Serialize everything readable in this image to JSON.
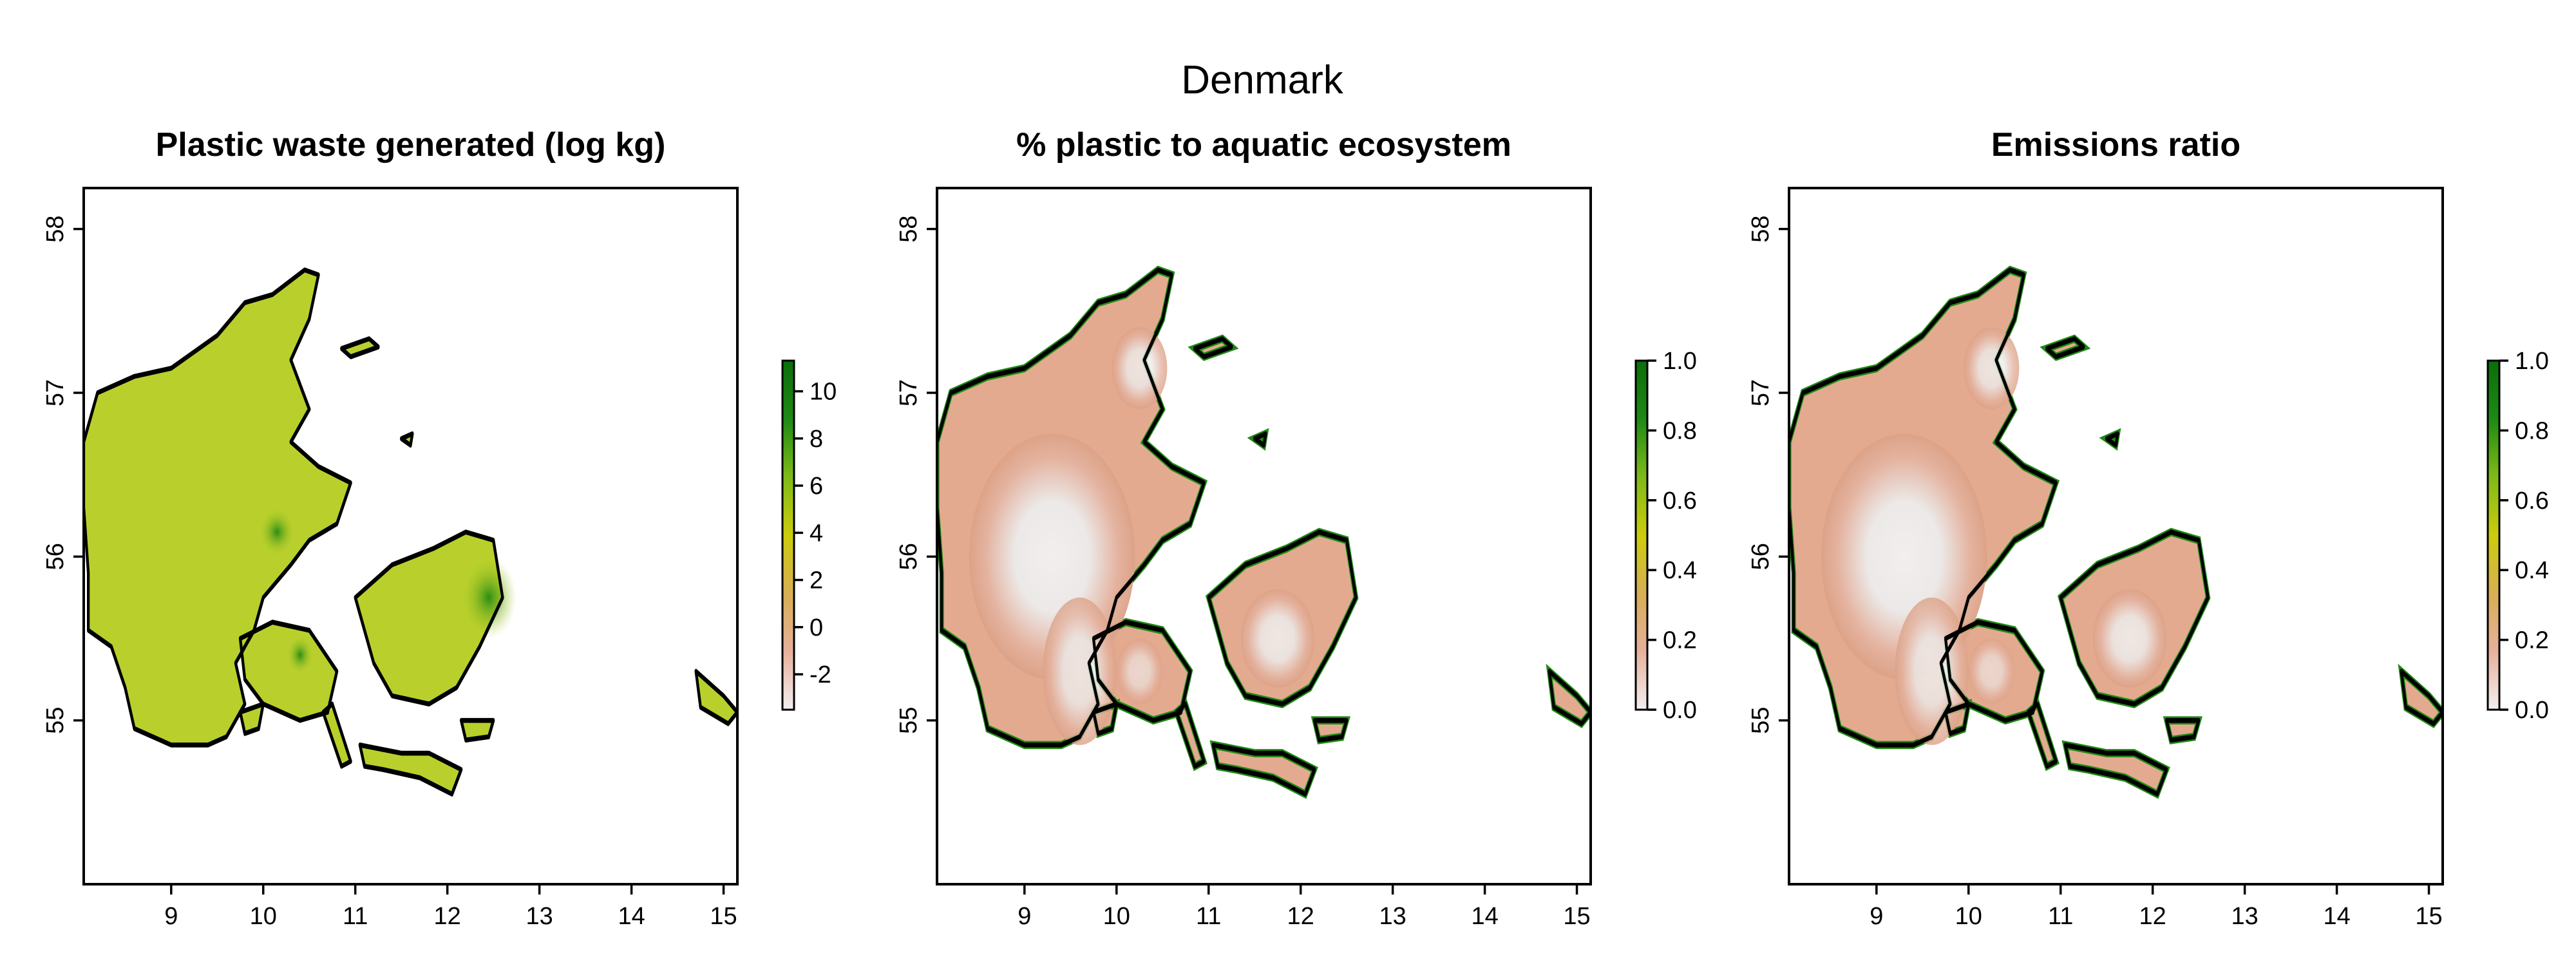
{
  "title": "Denmark",
  "colors": {
    "coast": "#000000",
    "land_low_ratio": "#ececec",
    "land_waste": "#b7cf2a",
    "land_ratio": "#e4aa90",
    "ramp": [
      "#f3efef",
      "#e6b09b",
      "#d8ae55",
      "#cccc0c",
      "#7dba18",
      "#1f8a14",
      "#0a6e0a"
    ]
  },
  "chart_data": [
    {
      "type": "raster-map",
      "title": "Plastic waste generated (log kg)",
      "xlim": [
        8.05,
        15.15
      ],
      "ylim": [
        54.0,
        58.25
      ],
      "x_ticks": [
        "9",
        "10",
        "11",
        "12",
        "13",
        "14",
        "15"
      ],
      "y_ticks": [
        "55",
        "56",
        "57",
        "58"
      ],
      "legend": {
        "position": "right",
        "ticks": [
          "10",
          "8",
          "6",
          "4",
          "2",
          "0",
          "-2"
        ],
        "range": [
          -3.5,
          11.3
        ]
      }
    },
    {
      "type": "raster-map",
      "title": "% plastic to aquatic ecosystem",
      "xlim": [
        8.05,
        15.15
      ],
      "ylim": [
        54.0,
        58.25
      ],
      "x_ticks": [
        "9",
        "10",
        "11",
        "12",
        "13",
        "14",
        "15"
      ],
      "y_ticks": [
        "55",
        "56",
        "57",
        "58"
      ],
      "legend": {
        "position": "right",
        "ticks": [
          "1.0",
          "0.8",
          "0.6",
          "0.4",
          "0.2",
          "0.0"
        ],
        "range": [
          0.0,
          1.0
        ]
      }
    },
    {
      "type": "raster-map",
      "title": "Emissions ratio",
      "xlim": [
        8.05,
        15.15
      ],
      "ylim": [
        54.0,
        58.25
      ],
      "x_ticks": [
        "9",
        "10",
        "11",
        "12",
        "13",
        "14",
        "15"
      ],
      "y_ticks": [
        "55",
        "56",
        "57",
        "58"
      ],
      "legend": {
        "position": "right",
        "ticks": [
          "1.0",
          "0.8",
          "0.6",
          "0.4",
          "0.2",
          "0.0"
        ],
        "range": [
          0.0,
          1.0
        ]
      }
    }
  ]
}
